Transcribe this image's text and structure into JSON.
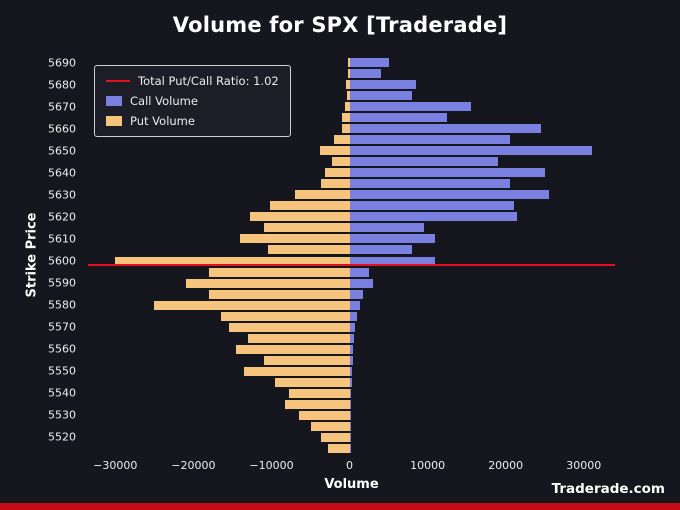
{
  "title": "Volume for SPX [Traderade]",
  "watermark": "Traderade.com",
  "legend": {
    "ratio_label": "Total Put/Call Ratio: 1.02",
    "call_label": "Call Volume",
    "put_label": "Put Volume"
  },
  "colors": {
    "background": "#16161e",
    "call": "#7a80e0",
    "put": "#f7c47d",
    "ratio_line": "#e3101f",
    "bottom_strip": "#c60b18",
    "text": "#ececec"
  },
  "chart_data": {
    "type": "bar",
    "orientation": "horizontal",
    "title": "Volume for SPX [Traderade]",
    "xlabel": "Volume",
    "ylabel": "Strike Price",
    "xlim": [
      -33500,
      34000
    ],
    "x_ticks": [
      -30000,
      -20000,
      -10000,
      0,
      10000,
      20000,
      30000
    ],
    "x_tick_labels": [
      "−30000",
      "−20000",
      "−10000",
      "0",
      "10000",
      "20000",
      "30000"
    ],
    "y_ticks": [
      5690,
      5680,
      5670,
      5660,
      5650,
      5640,
      5630,
      5620,
      5610,
      5600,
      5590,
      5580,
      5570,
      5560,
      5550,
      5540,
      5530,
      5520
    ],
    "strikes": [
      5690,
      5685,
      5680,
      5675,
      5670,
      5665,
      5660,
      5655,
      5650,
      5645,
      5640,
      5635,
      5630,
      5625,
      5620,
      5615,
      5610,
      5605,
      5600,
      5595,
      5590,
      5585,
      5580,
      5575,
      5570,
      5565,
      5560,
      5555,
      5550,
      5545,
      5540,
      5535,
      5530,
      5525,
      5520,
      5515
    ],
    "series": [
      {
        "name": "Call Volume",
        "values": [
          5000,
          4000,
          8500,
          8000,
          15500,
          12500,
          24500,
          20500,
          31000,
          19000,
          25000,
          20500,
          25500,
          21000,
          21500,
          9500,
          11000,
          8000,
          11000,
          2500,
          3000,
          1700,
          1300,
          900,
          700,
          600,
          500,
          400,
          350,
          300,
          250,
          200,
          150,
          120,
          100,
          80
        ]
      },
      {
        "name": "Put Volume",
        "values": [
          200,
          150,
          400,
          300,
          600,
          1000,
          1000,
          2000,
          3800,
          2300,
          3200,
          3600,
          7000,
          10200,
          12800,
          11000,
          14000,
          10500,
          30000,
          18000,
          21000,
          18000,
          25000,
          16500,
          15500,
          13000,
          14500,
          11000,
          13500,
          9500,
          7800,
          8300,
          6500,
          5000,
          3600,
          2800
        ]
      }
    ],
    "ratio_line_strike": 5598,
    "total_put_call_ratio": 1.02,
    "legend_position": "upper-left",
    "grid": false
  }
}
